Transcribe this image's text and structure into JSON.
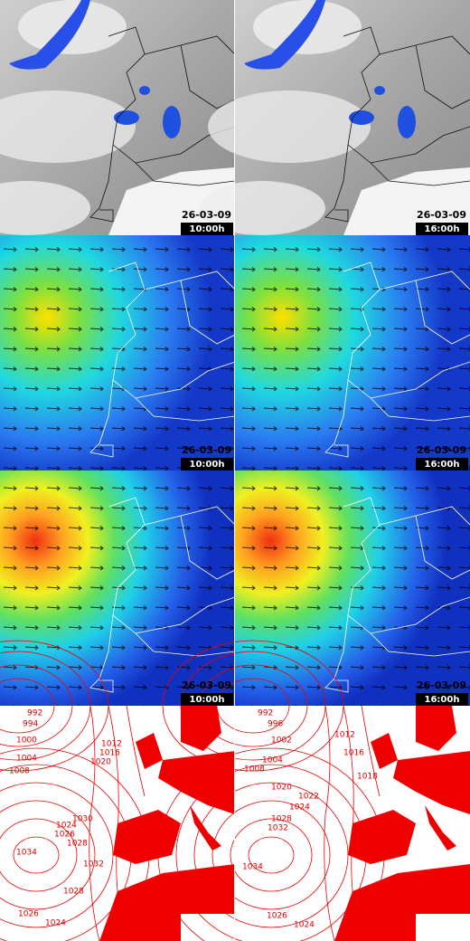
{
  "panels": [
    {
      "date": "26-03-09",
      "time": "10:00h"
    },
    {
      "date": "26-03-09",
      "time": "16:00h"
    },
    {
      "date": "26-03-09",
      "time": "10:00h"
    },
    {
      "date": "26-03-09",
      "time": "16:00h"
    },
    {
      "date": "26-03-09",
      "time": "10:00h"
    },
    {
      "date": "26-03-09",
      "time": "16:00h"
    }
  ],
  "isobars": {
    "left": [
      "992",
      "994",
      "1000",
      "1004",
      "1008",
      "1012",
      "1016",
      "1020",
      "1024",
      "1026",
      "1028",
      "1030",
      "1034",
      "1032",
      "1028",
      "1026",
      "1024"
    ],
    "right": [
      "992",
      "996",
      "1002",
      "1004",
      "1008",
      "1012",
      "1016",
      "1018",
      "1020",
      "1022",
      "1024",
      "1028",
      "1032",
      "1034",
      "1026",
      "1024"
    ]
  }
}
